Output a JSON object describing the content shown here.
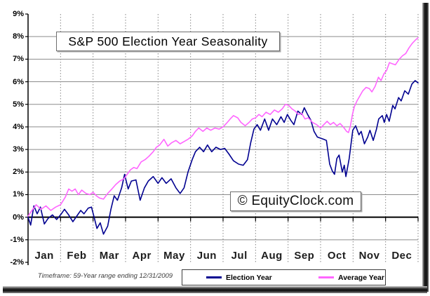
{
  "page": {
    "watermark": "© EquityClock.com",
    "footer_note": "Timeframe: 59-Year range ending 12/31/2009"
  },
  "chart_data": {
    "type": "line",
    "title": "S&P 500 Election Year Seasonality",
    "x_axis": {
      "tick_labels": [
        "Jan",
        "Feb",
        "Mar",
        "Apr",
        "May",
        "Jun",
        "Jul",
        "Aug",
        "Sep",
        "Oct",
        "Nov",
        "Dec"
      ],
      "range_months": [
        0,
        12
      ],
      "gridlines": "dotted-vertical-at-month-boundaries"
    },
    "y_axis": {
      "unit": "%",
      "min": -2,
      "max": 9,
      "tick_labels": [
        "9%",
        "8%",
        "7%",
        "6%",
        "5%",
        "4%",
        "3%",
        "2%",
        "1%",
        "0%",
        "-1%",
        "-2%"
      ],
      "zero_line": "thick-black",
      "gridlines": "solid-horizontal"
    },
    "legend": {
      "position": "bottom",
      "entries": [
        {
          "label": "Election Year",
          "color": "#000090"
        },
        {
          "label": "Average Year",
          "color": "#ff66ff"
        }
      ]
    },
    "series": [
      {
        "name": "Election Year",
        "color": "#000090",
        "points": [
          [
            0.0,
            0.0
          ],
          [
            0.08,
            -0.35
          ],
          [
            0.18,
            0.5
          ],
          [
            0.28,
            0.15
          ],
          [
            0.38,
            0.45
          ],
          [
            0.5,
            -0.3
          ],
          [
            0.62,
            -0.05
          ],
          [
            0.75,
            0.1
          ],
          [
            0.88,
            -0.1
          ],
          [
            1.0,
            0.1
          ],
          [
            1.12,
            0.35
          ],
          [
            1.25,
            0.1
          ],
          [
            1.38,
            -0.2
          ],
          [
            1.5,
            0.05
          ],
          [
            1.62,
            0.3
          ],
          [
            1.72,
            0.15
          ],
          [
            1.85,
            0.4
          ],
          [
            1.95,
            0.45
          ],
          [
            2.05,
            -0.1
          ],
          [
            2.12,
            -0.5
          ],
          [
            2.22,
            -0.25
          ],
          [
            2.32,
            -0.75
          ],
          [
            2.45,
            -0.4
          ],
          [
            2.55,
            0.35
          ],
          [
            2.65,
            0.95
          ],
          [
            2.75,
            0.75
          ],
          [
            2.88,
            1.3
          ],
          [
            2.97,
            1.9
          ],
          [
            3.08,
            1.25
          ],
          [
            3.18,
            1.6
          ],
          [
            3.32,
            1.65
          ],
          [
            3.45,
            0.75
          ],
          [
            3.58,
            1.3
          ],
          [
            3.7,
            1.6
          ],
          [
            3.85,
            1.8
          ],
          [
            4.0,
            1.5
          ],
          [
            4.12,
            1.75
          ],
          [
            4.25,
            1.5
          ],
          [
            4.4,
            1.7
          ],
          [
            4.55,
            1.3
          ],
          [
            4.68,
            1.05
          ],
          [
            4.8,
            1.3
          ],
          [
            4.92,
            2.0
          ],
          [
            5.05,
            2.55
          ],
          [
            5.15,
            2.9
          ],
          [
            5.28,
            3.1
          ],
          [
            5.4,
            2.9
          ],
          [
            5.52,
            3.2
          ],
          [
            5.65,
            2.9
          ],
          [
            5.78,
            3.1
          ],
          [
            5.92,
            3.0
          ],
          [
            6.05,
            3.05
          ],
          [
            6.18,
            2.8
          ],
          [
            6.32,
            2.5
          ],
          [
            6.48,
            2.35
          ],
          [
            6.62,
            2.3
          ],
          [
            6.75,
            2.55
          ],
          [
            6.85,
            3.3
          ],
          [
            6.95,
            3.9
          ],
          [
            7.05,
            4.1
          ],
          [
            7.15,
            3.85
          ],
          [
            7.28,
            4.35
          ],
          [
            7.4,
            3.85
          ],
          [
            7.52,
            4.35
          ],
          [
            7.65,
            4.1
          ],
          [
            7.78,
            4.45
          ],
          [
            7.88,
            4.2
          ],
          [
            7.98,
            4.55
          ],
          [
            8.08,
            4.3
          ],
          [
            8.18,
            4.1
          ],
          [
            8.3,
            4.7
          ],
          [
            8.42,
            4.55
          ],
          [
            8.5,
            4.85
          ],
          [
            8.6,
            4.55
          ],
          [
            8.7,
            4.3
          ],
          [
            8.8,
            3.8
          ],
          [
            8.9,
            3.55
          ],
          [
            9.0,
            3.5
          ],
          [
            9.1,
            3.45
          ],
          [
            9.18,
            3.4
          ],
          [
            9.28,
            2.35
          ],
          [
            9.36,
            2.05
          ],
          [
            9.43,
            1.9
          ],
          [
            9.5,
            2.6
          ],
          [
            9.57,
            2.75
          ],
          [
            9.67,
            2.0
          ],
          [
            9.73,
            2.3
          ],
          [
            9.78,
            1.8
          ],
          [
            9.88,
            2.6
          ],
          [
            9.99,
            3.85
          ],
          [
            10.08,
            4.05
          ],
          [
            10.18,
            3.65
          ],
          [
            10.25,
            3.8
          ],
          [
            10.35,
            3.25
          ],
          [
            10.45,
            3.55
          ],
          [
            10.52,
            3.85
          ],
          [
            10.62,
            3.4
          ],
          [
            10.72,
            3.9
          ],
          [
            10.79,
            4.35
          ],
          [
            10.9,
            4.5
          ],
          [
            10.96,
            4.2
          ],
          [
            11.03,
            4.55
          ],
          [
            11.11,
            4.25
          ],
          [
            11.22,
            4.95
          ],
          [
            11.29,
            4.8
          ],
          [
            11.4,
            5.3
          ],
          [
            11.48,
            5.15
          ],
          [
            11.59,
            5.6
          ],
          [
            11.7,
            5.45
          ],
          [
            11.81,
            5.9
          ],
          [
            11.91,
            6.05
          ],
          [
            12.0,
            5.95
          ]
        ]
      },
      {
        "name": "Average Year",
        "color": "#ff66ff",
        "points": [
          [
            0.0,
            0.05
          ],
          [
            0.12,
            0.3
          ],
          [
            0.25,
            0.55
          ],
          [
            0.4,
            0.35
          ],
          [
            0.55,
            0.5
          ],
          [
            0.7,
            0.3
          ],
          [
            0.85,
            0.45
          ],
          [
            1.0,
            0.55
          ],
          [
            1.15,
            0.9
          ],
          [
            1.25,
            1.25
          ],
          [
            1.35,
            1.15
          ],
          [
            1.45,
            1.25
          ],
          [
            1.55,
            1.0
          ],
          [
            1.65,
            1.2
          ],
          [
            1.78,
            1.05
          ],
          [
            1.9,
            1.0
          ],
          [
            2.0,
            1.1
          ],
          [
            2.1,
            0.95
          ],
          [
            2.2,
            0.85
          ],
          [
            2.32,
            0.8
          ],
          [
            2.45,
            1.05
          ],
          [
            2.58,
            1.25
          ],
          [
            2.7,
            1.45
          ],
          [
            2.82,
            1.6
          ],
          [
            2.95,
            1.7
          ],
          [
            3.05,
            1.9
          ],
          [
            3.15,
            2.1
          ],
          [
            3.25,
            2.2
          ],
          [
            3.35,
            2.15
          ],
          [
            3.48,
            2.45
          ],
          [
            3.6,
            2.55
          ],
          [
            3.72,
            2.7
          ],
          [
            3.85,
            2.9
          ],
          [
            3.95,
            3.1
          ],
          [
            4.05,
            3.2
          ],
          [
            4.18,
            3.45
          ],
          [
            4.3,
            3.15
          ],
          [
            4.42,
            3.3
          ],
          [
            4.55,
            3.4
          ],
          [
            4.68,
            3.25
          ],
          [
            4.8,
            3.35
          ],
          [
            4.92,
            3.45
          ],
          [
            5.05,
            3.6
          ],
          [
            5.15,
            3.8
          ],
          [
            5.25,
            3.95
          ],
          [
            5.38,
            3.8
          ],
          [
            5.5,
            3.95
          ],
          [
            5.62,
            3.85
          ],
          [
            5.75,
            3.95
          ],
          [
            5.88,
            3.9
          ],
          [
            6.0,
            4.0
          ],
          [
            6.1,
            4.15
          ],
          [
            6.22,
            4.35
          ],
          [
            6.32,
            4.5
          ],
          [
            6.45,
            4.4
          ],
          [
            6.55,
            4.2
          ],
          [
            6.68,
            4.05
          ],
          [
            6.8,
            4.2
          ],
          [
            6.9,
            4.35
          ],
          [
            7.0,
            4.4
          ],
          [
            7.1,
            4.55
          ],
          [
            7.2,
            4.45
          ],
          [
            7.32,
            4.65
          ],
          [
            7.45,
            4.55
          ],
          [
            7.58,
            4.75
          ],
          [
            7.7,
            4.65
          ],
          [
            7.82,
            4.8
          ],
          [
            7.92,
            5.0
          ],
          [
            8.02,
            4.95
          ],
          [
            8.12,
            4.8
          ],
          [
            8.22,
            4.7
          ],
          [
            8.32,
            4.55
          ],
          [
            8.42,
            4.6
          ],
          [
            8.52,
            4.35
          ],
          [
            8.62,
            4.4
          ],
          [
            8.75,
            4.2
          ],
          [
            8.88,
            4.1
          ],
          [
            9.0,
            3.95
          ],
          [
            9.1,
            4.1
          ],
          [
            9.2,
            4.25
          ],
          [
            9.3,
            4.1
          ],
          [
            9.4,
            4.2
          ],
          [
            9.5,
            4.05
          ],
          [
            9.6,
            4.15
          ],
          [
            9.7,
            4.0
          ],
          [
            9.8,
            3.8
          ],
          [
            9.86,
            3.75
          ],
          [
            9.92,
            4.05
          ],
          [
            9.98,
            4.55
          ],
          [
            10.04,
            4.9
          ],
          [
            10.12,
            5.15
          ],
          [
            10.22,
            5.4
          ],
          [
            10.3,
            5.6
          ],
          [
            10.4,
            5.75
          ],
          [
            10.5,
            5.7
          ],
          [
            10.58,
            5.55
          ],
          [
            10.68,
            5.8
          ],
          [
            10.78,
            6.2
          ],
          [
            10.86,
            6.05
          ],
          [
            10.95,
            6.35
          ],
          [
            11.03,
            6.5
          ],
          [
            11.12,
            6.85
          ],
          [
            11.2,
            6.8
          ],
          [
            11.3,
            6.75
          ],
          [
            11.42,
            7.0
          ],
          [
            11.52,
            7.15
          ],
          [
            11.62,
            7.25
          ],
          [
            11.72,
            7.5
          ],
          [
            11.82,
            7.7
          ],
          [
            11.92,
            7.85
          ],
          [
            12.0,
            7.95
          ]
        ]
      }
    ]
  }
}
